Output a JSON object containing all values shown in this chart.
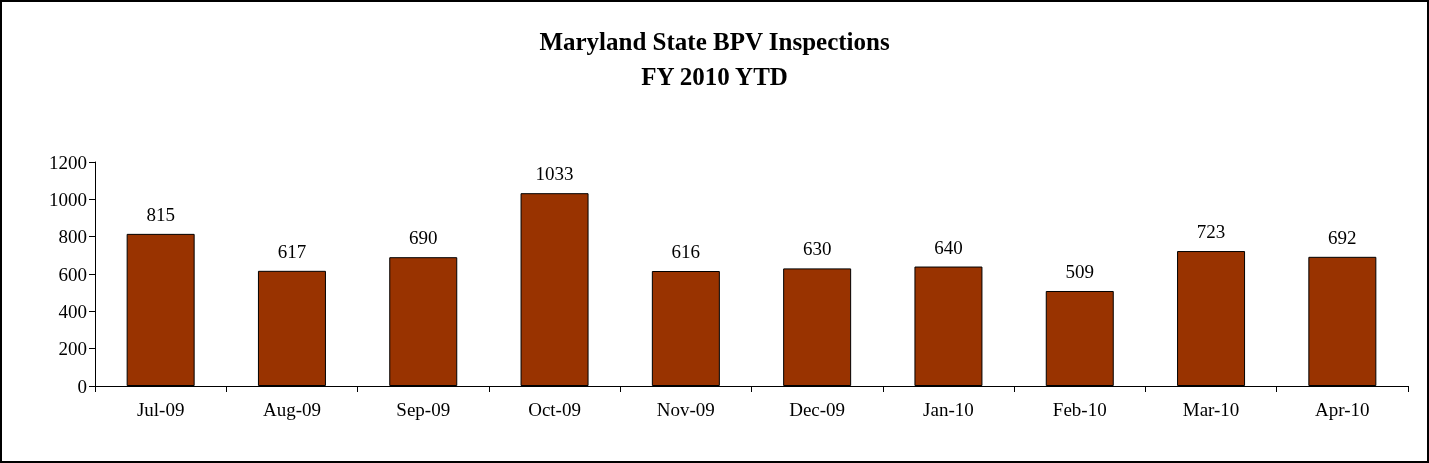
{
  "chart_data": {
    "type": "bar",
    "title": "Maryland State BPV Inspections",
    "subtitle": "FY 2010 YTD",
    "categories": [
      "Jul-09",
      "Aug-09",
      "Sep-09",
      "Oct-09",
      "Nov-09",
      "Dec-09",
      "Jan-10",
      "Feb-10",
      "Mar-10",
      "Apr-10"
    ],
    "values": [
      815,
      617,
      690,
      1033,
      616,
      630,
      640,
      509,
      723,
      692
    ],
    "color": "#993300",
    "ylim": [
      0,
      1200
    ],
    "yticks": [
      0,
      200,
      400,
      600,
      800,
      1000,
      1200
    ],
    "data_labels": true,
    "grid": false
  }
}
